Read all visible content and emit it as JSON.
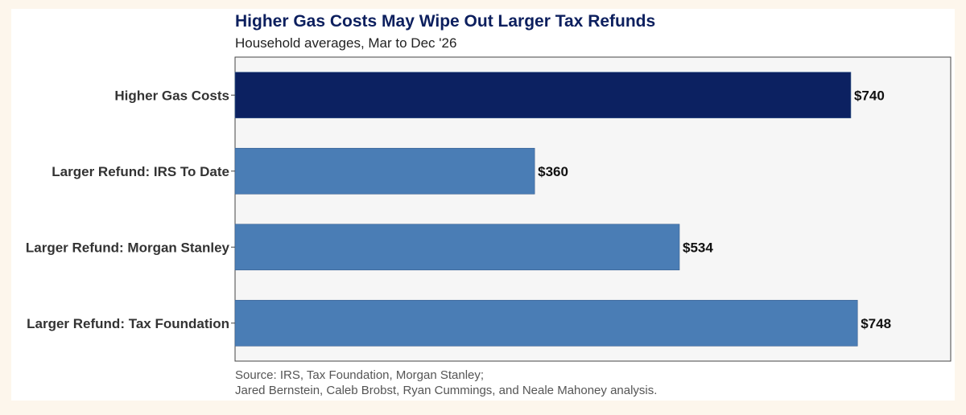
{
  "chart_data": {
    "type": "bar",
    "orientation": "horizontal",
    "title": "Higher Gas Costs May Wipe Out Larger Tax Refunds",
    "subtitle": "Household averages, Mar to Dec '26",
    "categories": [
      "Higher Gas Costs",
      "Larger Refund: IRS To Date",
      "Larger Refund: Morgan Stanley",
      "Larger Refund: Tax Foundation"
    ],
    "values": [
      740,
      360,
      534,
      748
    ],
    "value_labels": [
      "$740",
      "$360",
      "$534",
      "$748"
    ],
    "bar_colors": [
      "#0c2161",
      "#4a7db5",
      "#4a7db5",
      "#4a7db5"
    ],
    "xlim": [
      0,
      860
    ],
    "xlabel": "",
    "ylabel": "",
    "grid": false,
    "legend": "none",
    "source_lines": [
      "Source: IRS, Tax Foundation, Morgan Stanley;",
      "Jared Bernstein, Caleb Brobst, Ryan Cummings, and Neale Mahoney analysis."
    ]
  },
  "colors": {
    "page_background": "#fdf6ec",
    "panel_background": "#f6f6f6",
    "title_color": "#0c1f5e"
  }
}
